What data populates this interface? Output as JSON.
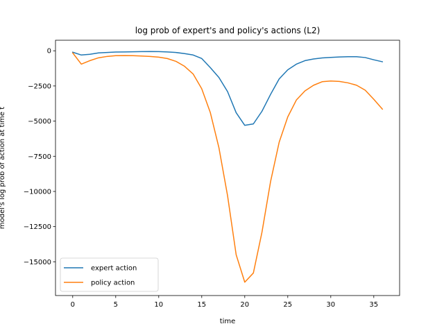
{
  "chart_data": {
    "type": "line",
    "title": "log prob of expert's and policy's actions (L2)",
    "xlabel": "time",
    "ylabel": "model's log prob of action at time t",
    "xlim": [
      -2,
      38
    ],
    "ylim": [
      -17400,
      750
    ],
    "xticks": [
      0,
      5,
      10,
      15,
      20,
      25,
      30,
      35
    ],
    "yticks": [
      0,
      -2500,
      -5000,
      -7500,
      -10000,
      -12500,
      -15000
    ],
    "ytick_labels": [
      "0",
      "−2500",
      "−5000",
      "−7500",
      "−10000",
      "−12500",
      "−15000"
    ],
    "grid": false,
    "legend_position": "lower-left",
    "series": [
      {
        "name": "expert action",
        "color": "#1f77b4",
        "x": [
          0,
          1,
          2,
          3,
          4,
          5,
          6,
          7,
          8,
          9,
          10,
          11,
          12,
          13,
          14,
          15,
          16,
          17,
          18,
          19,
          20,
          21,
          22,
          23,
          24,
          25,
          26,
          27,
          28,
          29,
          30,
          31,
          32,
          33,
          34,
          35,
          36
        ],
        "y": [
          -100,
          -300,
          -250,
          -150,
          -120,
          -90,
          -80,
          -70,
          -60,
          -50,
          -60,
          -80,
          -120,
          -200,
          -300,
          -550,
          -1200,
          -1900,
          -2900,
          -4400,
          -5300,
          -5200,
          -4300,
          -3100,
          -2000,
          -1350,
          -950,
          -700,
          -580,
          -510,
          -470,
          -440,
          -420,
          -420,
          -480,
          -640,
          -780
        ]
      },
      {
        "name": "policy action",
        "color": "#ff7f0e",
        "x": [
          0,
          1,
          2,
          3,
          4,
          5,
          6,
          7,
          8,
          9,
          10,
          11,
          12,
          13,
          14,
          15,
          16,
          17,
          18,
          19,
          20,
          21,
          22,
          23,
          24,
          25,
          26,
          27,
          28,
          29,
          30,
          31,
          32,
          33,
          34,
          35,
          36
        ],
        "y": [
          -150,
          -950,
          -700,
          -500,
          -400,
          -350,
          -340,
          -350,
          -370,
          -400,
          -450,
          -550,
          -750,
          -1100,
          -1650,
          -2700,
          -4400,
          -6900,
          -10300,
          -14500,
          -16450,
          -15800,
          -12900,
          -9300,
          -6500,
          -4700,
          -3500,
          -2850,
          -2450,
          -2200,
          -2150,
          -2180,
          -2280,
          -2450,
          -2800,
          -3450,
          -4150
        ]
      }
    ]
  }
}
